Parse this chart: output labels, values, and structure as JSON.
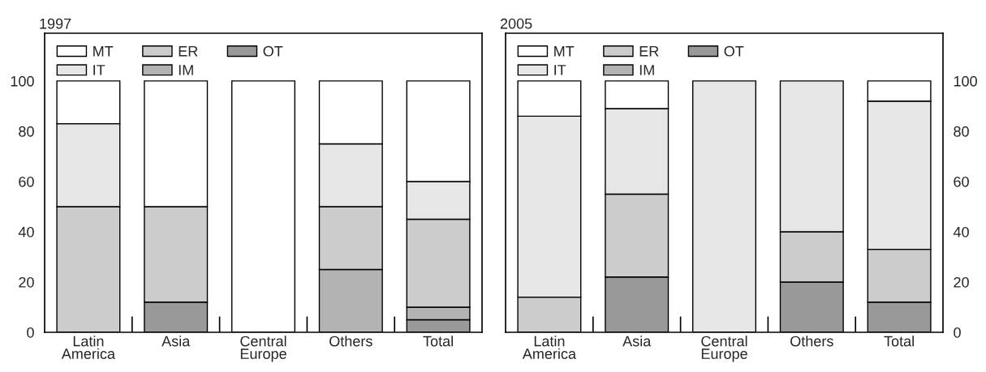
{
  "chart_data": [
    {
      "type": "bar",
      "title": "1997",
      "stacked": true,
      "legend": "top left",
      "categories": [
        "Latin America",
        "Asia",
        "Central Europe",
        "Others",
        "Total"
      ],
      "series": [
        {
          "name": "OT",
          "color": "#999999",
          "values": [
            null,
            12,
            null,
            null,
            5
          ]
        },
        {
          "name": "IM",
          "color": "#b3b3b3",
          "values": [
            null,
            null,
            null,
            25,
            5
          ]
        },
        {
          "name": "ER",
          "color": "#cccccc",
          "values": [
            50,
            38,
            null,
            25,
            35
          ]
        },
        {
          "name": "IT",
          "color": "#e6e6e6",
          "values": [
            33,
            null,
            null,
            25,
            15
          ]
        },
        {
          "name": "MT",
          "color": "#ffffff",
          "values": [
            17,
            50,
            100,
            25,
            40
          ]
        }
      ],
      "ylim": [
        0,
        119
      ],
      "yticks": [
        0,
        20,
        40,
        60,
        80,
        100
      ]
    },
    {
      "type": "bar",
      "title": "2005",
      "stacked": true,
      "legend": "top left",
      "categories": [
        "Latin America",
        "Asia",
        "Central Europe",
        "Others",
        "Total"
      ],
      "series": [
        {
          "name": "OT",
          "color": "#999999",
          "values": [
            null,
            22,
            null,
            20,
            12
          ]
        },
        {
          "name": "IM",
          "color": "#b3b3b3",
          "values": [
            null,
            null,
            null,
            null,
            null
          ]
        },
        {
          "name": "ER",
          "color": "#cccccc",
          "values": [
            14,
            33,
            null,
            20,
            21
          ]
        },
        {
          "name": "IT",
          "color": "#e6e6e6",
          "values": [
            72,
            34,
            100,
            60,
            59
          ]
        },
        {
          "name": "MT",
          "color": "#ffffff",
          "values": [
            14,
            11,
            null,
            null,
            8
          ]
        }
      ],
      "ylim": [
        0,
        119
      ],
      "yticks": [
        0,
        20,
        40,
        60,
        80,
        100
      ]
    }
  ]
}
